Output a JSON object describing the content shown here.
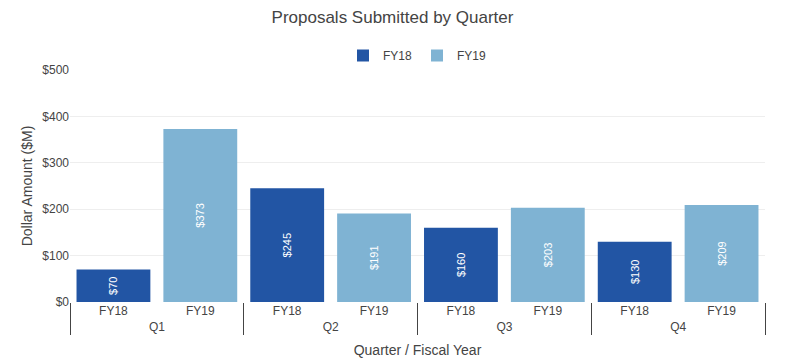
{
  "chart_data": {
    "type": "bar",
    "title": "Proposals Submitted by Quarter",
    "xlabel": "Quarter / Fiscal Year",
    "ylabel": "Dollar Amount ($M)",
    "categories": [
      "Q1",
      "Q2",
      "Q3",
      "Q4"
    ],
    "series": [
      {
        "name": "FY18",
        "color": "#2255a4",
        "values": [
          70,
          245,
          160,
          130
        ],
        "value_labels": [
          "$70",
          "$245",
          "$160",
          "$130"
        ]
      },
      {
        "name": "FY19",
        "color": "#7fb3d3",
        "values": [
          373,
          191,
          203,
          209
        ],
        "value_labels": [
          "$373",
          "$191",
          "$203",
          "$209"
        ]
      }
    ],
    "ylim": [
      0,
      500
    ],
    "yticks": [
      {
        "value": 0,
        "label": "$0"
      },
      {
        "value": 100,
        "label": "$100"
      },
      {
        "value": 200,
        "label": "$200"
      },
      {
        "value": 300,
        "label": "$300"
      },
      {
        "value": 400,
        "label": "$400"
      },
      {
        "value": 500,
        "label": "$500"
      }
    ],
    "grid": true,
    "legend": "top",
    "data_labels": true
  }
}
